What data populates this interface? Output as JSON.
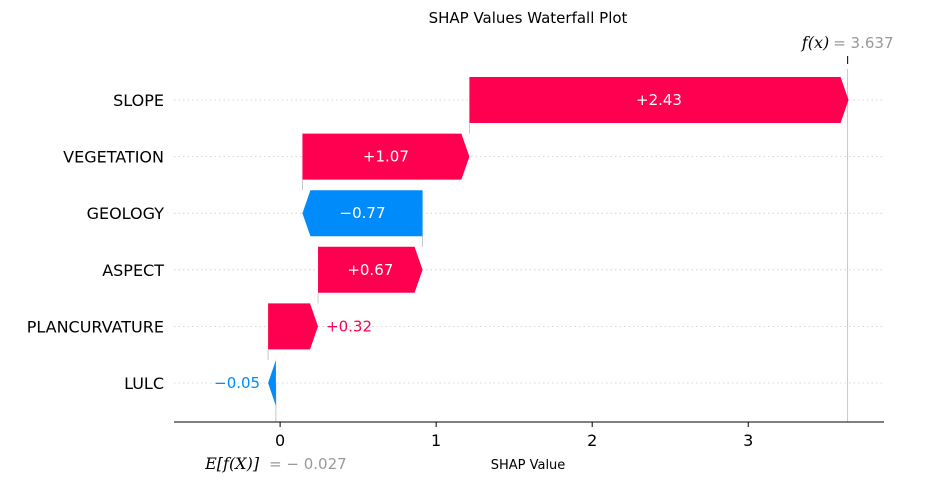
{
  "chart_data": {
    "type": "waterfall",
    "title": "SHAP Values Waterfall Plot",
    "xlabel": "SHAP Value",
    "xlim": [
      -0.68,
      3.87
    ],
    "xticks": [
      0,
      1,
      2,
      3
    ],
    "xtick_labels": [
      "0",
      "1",
      "2",
      "3"
    ],
    "base_value": -0.027,
    "base_label_prefix": "E[f(X)]",
    "base_label_value": "= − 0.027",
    "final_value": 3.637,
    "final_label_prefix": "f(x)",
    "final_label_value": "= 3.637",
    "features": [
      {
        "name": "SLOPE",
        "value": 2.43,
        "label": "+2.43"
      },
      {
        "name": "VEGETATION",
        "value": 1.07,
        "label": "+1.07"
      },
      {
        "name": "GEOLOGY",
        "value": -0.77,
        "label": "−0.77"
      },
      {
        "name": "ASPECT",
        "value": 0.67,
        "label": "+0.67"
      },
      {
        "name": "PLANCURVATURE",
        "value": 0.32,
        "label": "+0.32"
      },
      {
        "name": "LULC",
        "value": -0.05,
        "label": "−0.05"
      }
    ],
    "colors": {
      "positive": "#ff0051",
      "negative": "#008bfb",
      "muted": "#999999"
    },
    "grid": "dotted-horizontal"
  }
}
